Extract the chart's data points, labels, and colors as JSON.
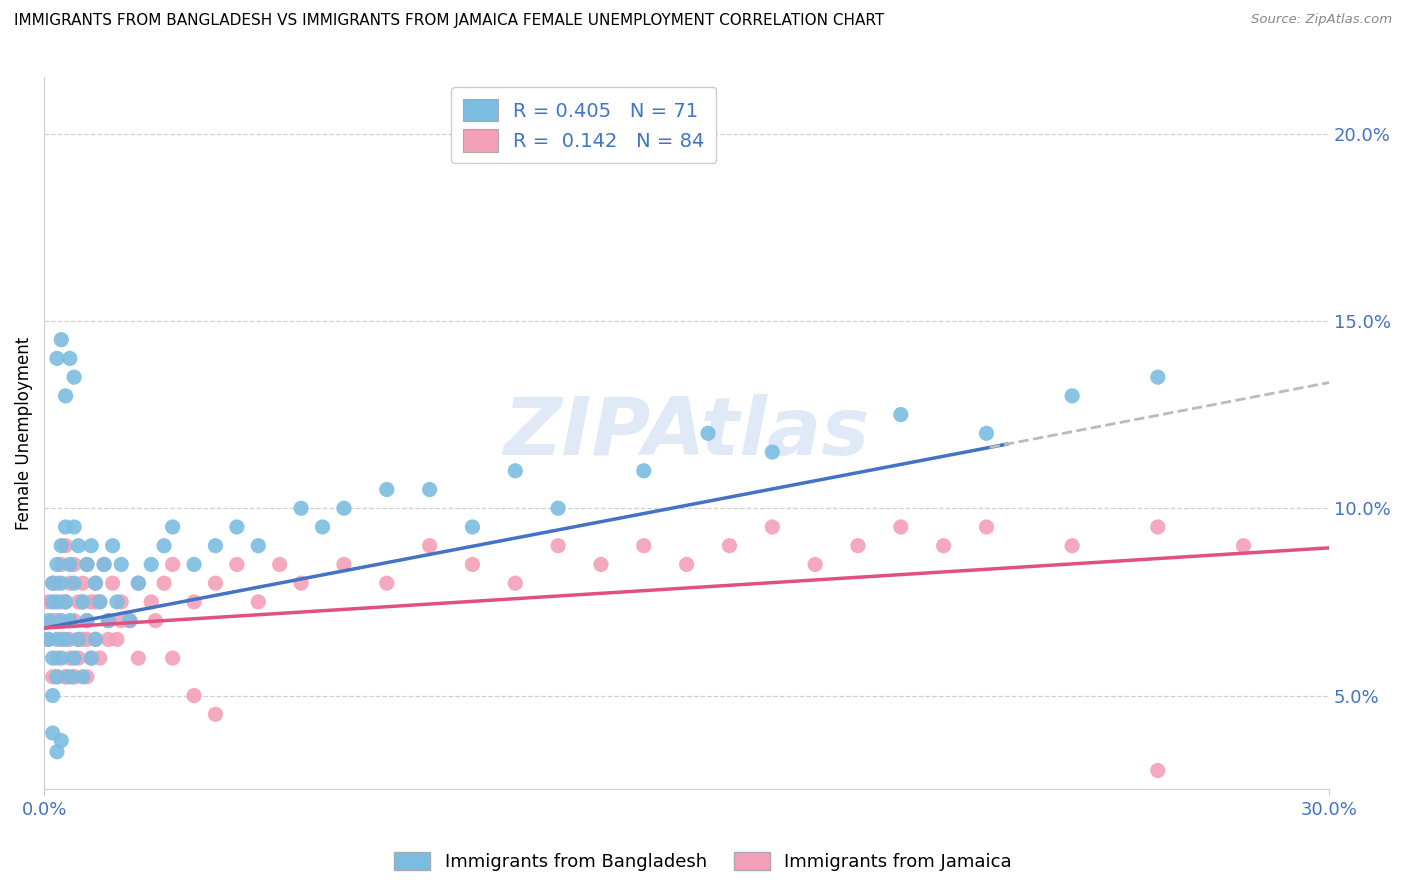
{
  "title": "IMMIGRANTS FROM BANGLADESH VS IMMIGRANTS FROM JAMAICA FEMALE UNEMPLOYMENT CORRELATION CHART",
  "source": "Source: ZipAtlas.com",
  "ylabel": "Female Unemployment",
  "ylim": [
    0.025,
    0.215
  ],
  "xlim": [
    0.0,
    0.3
  ],
  "yticks": [
    0.05,
    0.1,
    0.15,
    0.2
  ],
  "ytick_labels": [
    "5.0%",
    "10.0%",
    "15.0%",
    "20.0%"
  ],
  "xtick_left": "0.0%",
  "xtick_right": "30.0%",
  "legend_label1": "Immigrants from Bangladesh",
  "legend_label2": "Immigrants from Jamaica",
  "R1": 0.405,
  "N1": 71,
  "R2": 0.142,
  "N2": 84,
  "color_bangladesh": "#7bbde0",
  "color_jamaica": "#f4a0b8",
  "color_trend1": "#4472c4",
  "color_trend2": "#e05080",
  "color_trend1_ext": "#bbbbbb",
  "watermark": "ZIPAtlas",
  "bd_x": [
    0.001,
    0.001,
    0.002,
    0.002,
    0.002,
    0.002,
    0.003,
    0.003,
    0.003,
    0.003,
    0.004,
    0.004,
    0.004,
    0.004,
    0.005,
    0.005,
    0.005,
    0.006,
    0.006,
    0.006,
    0.007,
    0.007,
    0.007,
    0.008,
    0.008,
    0.009,
    0.009,
    0.01,
    0.01,
    0.011,
    0.011,
    0.012,
    0.012,
    0.013,
    0.014,
    0.015,
    0.016,
    0.017,
    0.018,
    0.02,
    0.022,
    0.025,
    0.028,
    0.03,
    0.035,
    0.04,
    0.045,
    0.05,
    0.06,
    0.065,
    0.07,
    0.08,
    0.09,
    0.1,
    0.11,
    0.12,
    0.14,
    0.155,
    0.17,
    0.2,
    0.22,
    0.24,
    0.26,
    0.003,
    0.004,
    0.005,
    0.006,
    0.007,
    0.002,
    0.003,
    0.004
  ],
  "bd_y": [
    0.065,
    0.07,
    0.06,
    0.075,
    0.08,
    0.05,
    0.065,
    0.055,
    0.075,
    0.085,
    0.06,
    0.07,
    0.08,
    0.09,
    0.065,
    0.075,
    0.095,
    0.055,
    0.07,
    0.085,
    0.06,
    0.08,
    0.095,
    0.065,
    0.09,
    0.055,
    0.075,
    0.07,
    0.085,
    0.06,
    0.09,
    0.065,
    0.08,
    0.075,
    0.085,
    0.07,
    0.09,
    0.075,
    0.085,
    0.07,
    0.08,
    0.085,
    0.09,
    0.095,
    0.085,
    0.09,
    0.095,
    0.09,
    0.1,
    0.095,
    0.1,
    0.105,
    0.105,
    0.095,
    0.11,
    0.1,
    0.11,
    0.12,
    0.115,
    0.125,
    0.12,
    0.13,
    0.135,
    0.14,
    0.145,
    0.13,
    0.14,
    0.135,
    0.04,
    0.035,
    0.038
  ],
  "jm_x": [
    0.001,
    0.001,
    0.002,
    0.002,
    0.002,
    0.003,
    0.003,
    0.003,
    0.004,
    0.004,
    0.004,
    0.005,
    0.005,
    0.005,
    0.006,
    0.006,
    0.007,
    0.007,
    0.007,
    0.008,
    0.008,
    0.009,
    0.009,
    0.01,
    0.01,
    0.01,
    0.011,
    0.011,
    0.012,
    0.012,
    0.013,
    0.013,
    0.014,
    0.015,
    0.016,
    0.017,
    0.018,
    0.02,
    0.022,
    0.025,
    0.028,
    0.03,
    0.035,
    0.04,
    0.045,
    0.05,
    0.055,
    0.06,
    0.07,
    0.08,
    0.09,
    0.1,
    0.11,
    0.12,
    0.13,
    0.14,
    0.15,
    0.16,
    0.17,
    0.18,
    0.19,
    0.2,
    0.21,
    0.22,
    0.24,
    0.26,
    0.28,
    0.003,
    0.004,
    0.005,
    0.006,
    0.007,
    0.008,
    0.009,
    0.01,
    0.012,
    0.015,
    0.018,
    0.022,
    0.026,
    0.03,
    0.035,
    0.04,
    0.26
  ],
  "jm_y": [
    0.065,
    0.075,
    0.055,
    0.07,
    0.08,
    0.06,
    0.07,
    0.08,
    0.065,
    0.075,
    0.085,
    0.055,
    0.075,
    0.09,
    0.06,
    0.08,
    0.055,
    0.07,
    0.085,
    0.06,
    0.075,
    0.065,
    0.08,
    0.055,
    0.07,
    0.085,
    0.06,
    0.075,
    0.065,
    0.08,
    0.06,
    0.075,
    0.085,
    0.07,
    0.08,
    0.065,
    0.075,
    0.07,
    0.08,
    0.075,
    0.08,
    0.085,
    0.075,
    0.08,
    0.085,
    0.075,
    0.085,
    0.08,
    0.085,
    0.08,
    0.09,
    0.085,
    0.08,
    0.09,
    0.085,
    0.09,
    0.085,
    0.09,
    0.095,
    0.085,
    0.09,
    0.095,
    0.09,
    0.095,
    0.09,
    0.095,
    0.09,
    0.055,
    0.065,
    0.055,
    0.065,
    0.055,
    0.065,
    0.075,
    0.065,
    0.075,
    0.065,
    0.07,
    0.06,
    0.07,
    0.06,
    0.05,
    0.045,
    0.03
  ]
}
